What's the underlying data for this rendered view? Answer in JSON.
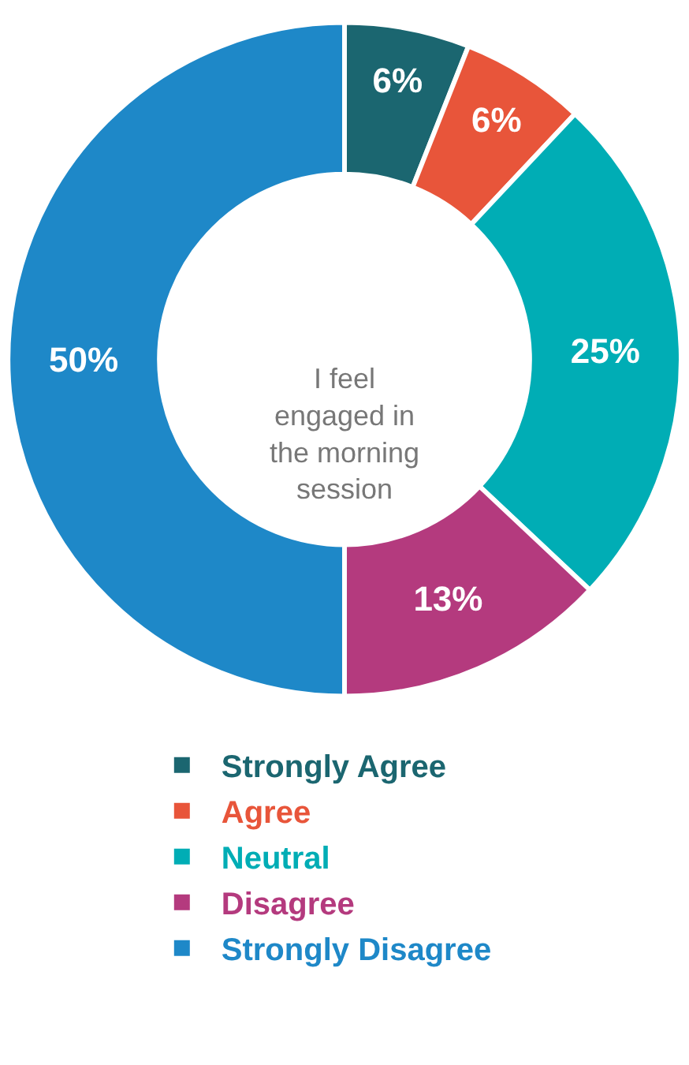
{
  "chart_data": {
    "type": "donut",
    "categories": [
      "Strongly Agree",
      "Agree",
      "Neutral",
      "Disagree",
      "Strongly Disagree"
    ],
    "values": [
      6,
      6,
      25,
      13,
      50
    ],
    "colors": [
      "#1b6670",
      "#e8553a",
      "#00adb5",
      "#b43a7e",
      "#1e88c8"
    ],
    "value_labels": [
      "6%",
      "6%",
      "25%",
      "13%",
      "50%"
    ],
    "annotations": [
      "I feel engaged in the morning session"
    ],
    "legend": "bottom"
  }
}
